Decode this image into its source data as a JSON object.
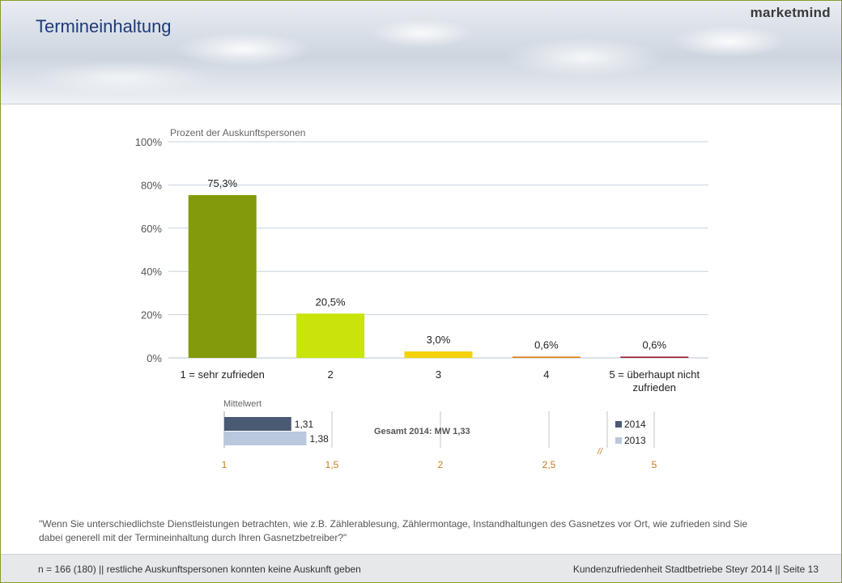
{
  "header": {
    "title": "Termineinhaltung",
    "logo": "marketmind"
  },
  "chart_data": [
    {
      "type": "bar",
      "subtitle": "Prozent der Auskunftspersonen",
      "categories": [
        "1 = sehr zufrieden",
        "2",
        "3",
        "4",
        "5 = überhaupt nicht zufrieden"
      ],
      "values": [
        75.3,
        20.5,
        3.0,
        0.6,
        0.6
      ],
      "value_labels": [
        "75,3%",
        "20,5%",
        "3,0%",
        "0,6%",
        "0,6%"
      ],
      "colors": [
        "#839b0a",
        "#c8e40a",
        "#f5d20a",
        "#e07a10",
        "#a01830"
      ],
      "ylim": [
        0,
        100
      ],
      "yticks": [
        "0%",
        "20%",
        "40%",
        "60%",
        "80%",
        "100%"
      ],
      "grid": true
    },
    {
      "type": "bar",
      "orientation": "horizontal",
      "title": "Mittelwert",
      "series": [
        {
          "name": "2014",
          "values": [
            1.31
          ],
          "label": "1,31",
          "color": "#4a5a72"
        },
        {
          "name": "2013",
          "values": [
            1.38
          ],
          "label": "1,38",
          "color": "#b9c8dc"
        }
      ],
      "xlim": [
        1,
        5
      ],
      "xticks": [
        "1",
        "1,5",
        "2",
        "2,5",
        "5"
      ],
      "axis_break": "//",
      "annotation": "Gesamt 2014: MW 1,33",
      "legend_position": "right"
    }
  ],
  "question": "\"Wenn Sie unterschiedlichste Dienstleistungen betrachten, wie z.B. Zählerablesung, Zählermontage, Instandhaltungen des Gasnetzes vor Ort, wie zufrieden sind Sie dabei generell mit der Termineinhaltung  durch Ihren  Gasnetzbetreiber?\"",
  "footer": {
    "left": "n = 166 (180) || restliche Auskunftspersonen konnten keine Auskunft geben",
    "right": "Kundenzufriedenheit Stadtbetriebe Steyr 2014 || Seite 13"
  }
}
